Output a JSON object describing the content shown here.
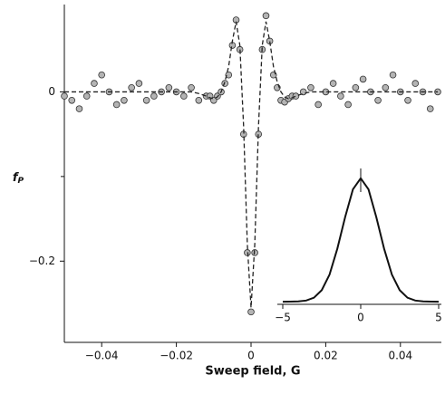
{
  "chart_data": [
    {
      "type": "scatter",
      "xlabel": "Sweep field, G",
      "ylabel": {
        "main": "f",
        "sub": "P"
      },
      "xlim": [
        -0.05,
        0.05
      ],
      "ylim": [
        -0.296,
        0.1
      ],
      "xticks": [
        {
          "value": -0.04,
          "label": "−0.04"
        },
        {
          "value": -0.02,
          "label": "−0.02"
        },
        0,
        0.02,
        0.04
      ],
      "yticks": [
        0,
        {
          "value": -0.2,
          "label": "−0.2"
        }
      ],
      "yminorticks": [
        -0.1
      ],
      "x": [
        -0.05,
        -0.048,
        -0.046,
        -0.044,
        -0.042,
        -0.04,
        -0.038,
        -0.036,
        -0.034,
        -0.032,
        -0.03,
        -0.028,
        -0.026,
        -0.024,
        -0.022,
        -0.02,
        -0.018,
        -0.016,
        -0.014,
        -0.012,
        -0.011,
        -0.01,
        -0.009,
        -0.008,
        -0.007,
        -0.006,
        -0.005,
        -0.004,
        -0.003,
        -0.002,
        -0.001,
        0,
        0.001,
        0.002,
        0.003,
        0.004,
        0.005,
        0.006,
        0.007,
        0.008,
        0.009,
        0.01,
        0.011,
        0.012,
        0.014,
        0.016,
        0.018,
        0.02,
        0.022,
        0.024,
        0.026,
        0.028,
        0.03,
        0.032,
        0.034,
        0.036,
        0.038,
        0.04,
        0.042,
        0.044,
        0.046,
        0.048,
        0.05
      ],
      "series": [
        {
          "type": "scatter",
          "color": "#b4b4b4",
          "values": [
            -0.005,
            -0.01,
            -0.02,
            -0.005,
            0.01,
            0.02,
            0.0,
            -0.015,
            -0.01,
            0.005,
            0.01,
            -0.01,
            -0.005,
            0.0,
            0.005,
            0.0,
            -0.005,
            0.005,
            -0.01,
            -0.005,
            -0.005,
            -0.01,
            -0.005,
            0.0,
            0.01,
            0.02,
            0.055,
            0.085,
            0.05,
            -0.05,
            -0.19,
            -0.26,
            -0.19,
            -0.05,
            0.05,
            0.09,
            0.06,
            0.02,
            0.005,
            -0.01,
            -0.012,
            -0.008,
            -0.005,
            -0.005,
            0.0,
            0.005,
            -0.015,
            0.0,
            0.01,
            -0.005,
            -0.015,
            0.005,
            0.015,
            0.0,
            -0.01,
            0.005,
            0.02,
            0.0,
            -0.01,
            0.01,
            0.0,
            -0.02,
            0.0
          ]
        },
        {
          "type": "line",
          "dash": true,
          "color": "#222222",
          "values": [
            0,
            0,
            0,
            0,
            0,
            0,
            0,
            0,
            0,
            0,
            0,
            0,
            0,
            0,
            0,
            0,
            0,
            0,
            -0.002,
            -0.005,
            -0.007,
            -0.008,
            -0.006,
            0.0,
            0.012,
            0.03,
            0.06,
            0.083,
            0.055,
            -0.04,
            -0.18,
            -0.255,
            -0.18,
            -0.04,
            0.055,
            0.083,
            0.06,
            0.03,
            0.012,
            0.0,
            -0.006,
            -0.008,
            -0.007,
            -0.005,
            -0.002,
            0,
            0,
            0,
            0,
            0,
            0,
            0,
            0,
            0,
            0,
            0,
            0,
            0,
            0,
            0,
            0,
            0,
            0
          ]
        }
      ]
    },
    {
      "type": "line",
      "xlim": [
        -5,
        5
      ],
      "ylim": [
        -0.05,
        1.05
      ],
      "xticks": [
        {
          "value": -5,
          "label": "−5"
        },
        0,
        5
      ],
      "x": [
        -5,
        -4.5,
        -4,
        -3.5,
        -3,
        -2.5,
        -2,
        -1.5,
        -1,
        -0.5,
        0,
        0.5,
        1,
        1.5,
        2,
        2.5,
        3,
        3.5,
        4,
        4.5,
        5
      ],
      "color": "#111111",
      "values": [
        0.0,
        0.001,
        0.003,
        0.01,
        0.033,
        0.094,
        0.22,
        0.43,
        0.685,
        0.91,
        1.0,
        0.91,
        0.685,
        0.43,
        0.22,
        0.094,
        0.033,
        0.01,
        0.003,
        0.001,
        0.0
      ]
    }
  ]
}
